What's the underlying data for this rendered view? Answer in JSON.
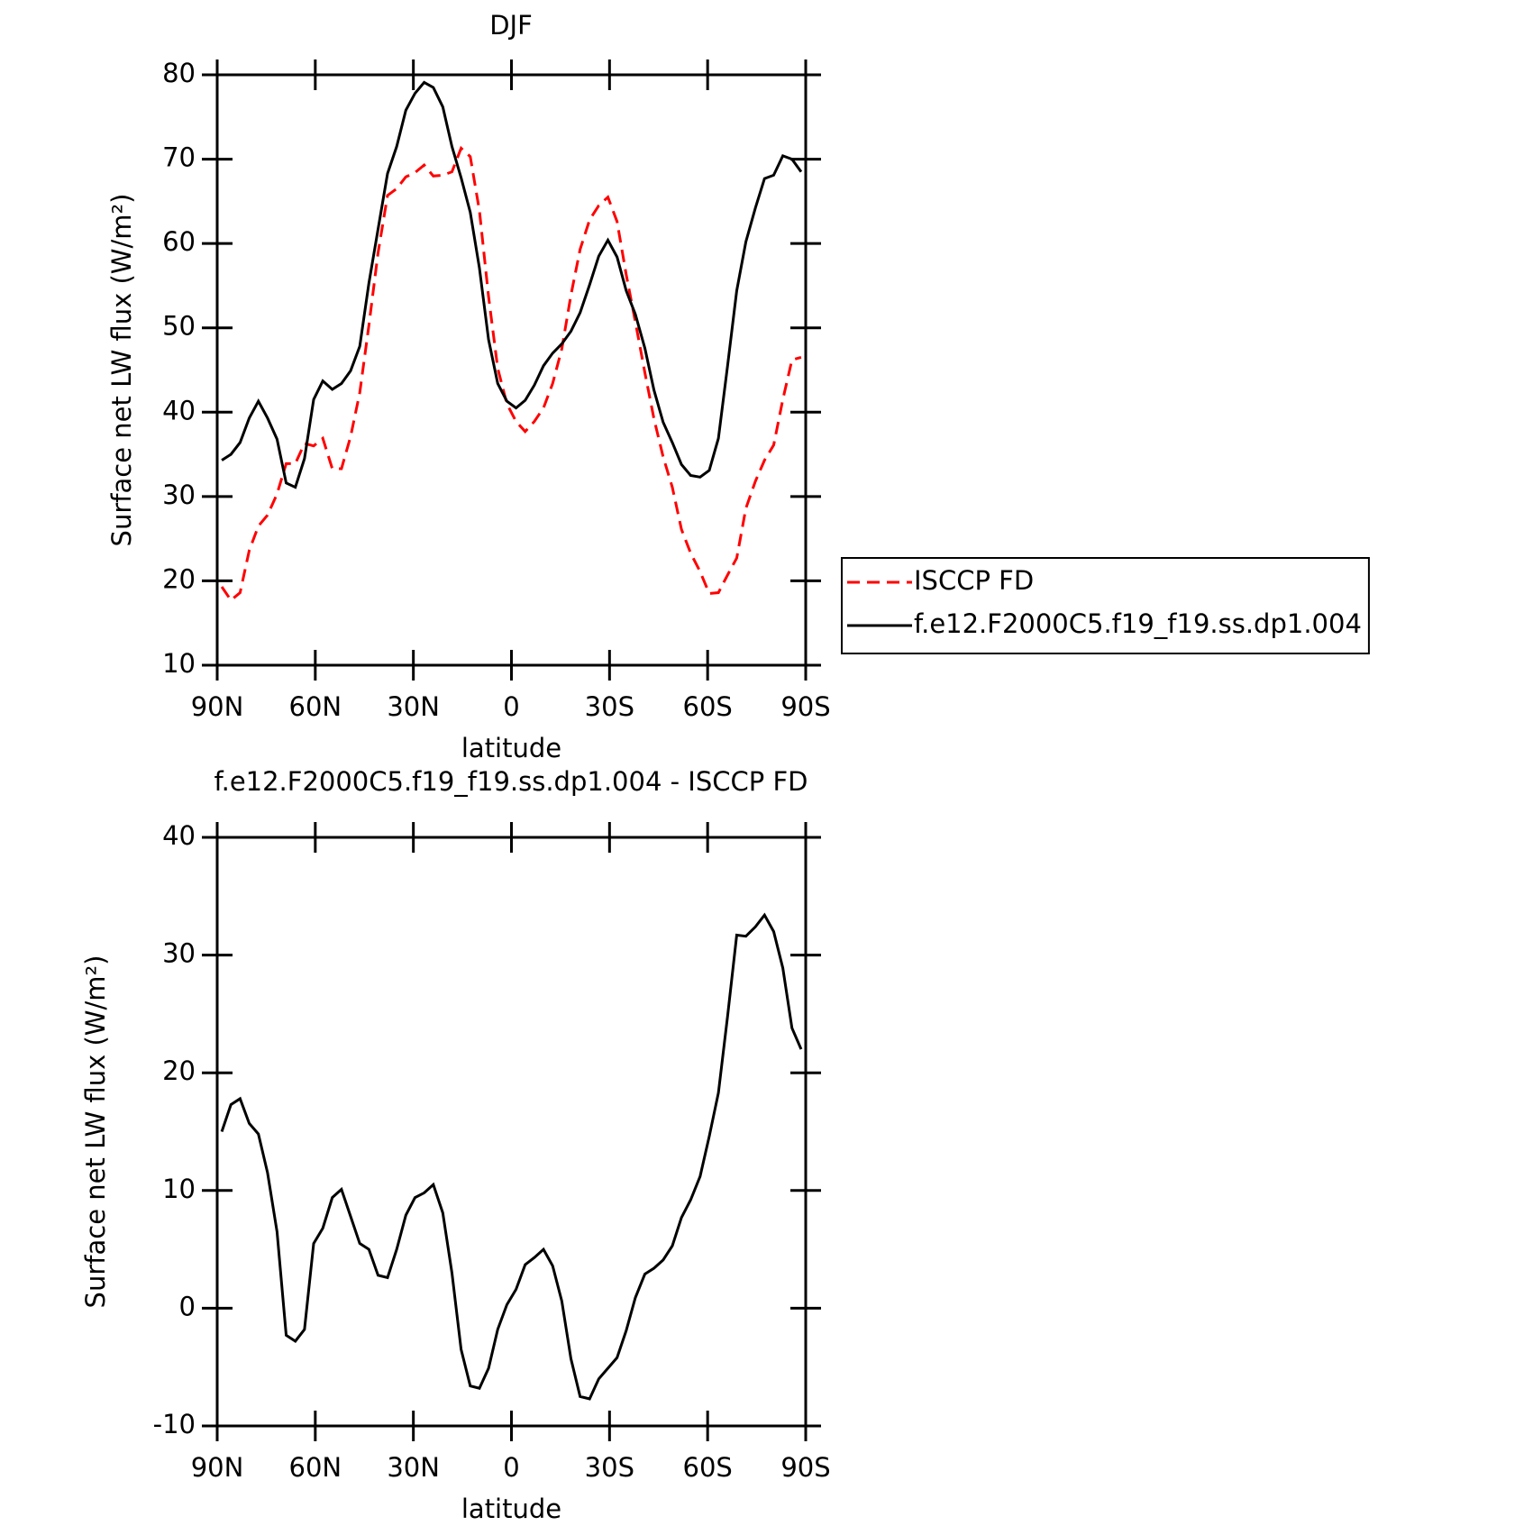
{
  "chart_data": [
    {
      "type": "line",
      "title": "DJF",
      "xlabel": "latitude",
      "ylabel": "Surface net LW flux (W/m²)",
      "x": [
        88.6,
        85.8,
        83.0,
        80.2,
        77.4,
        74.6,
        71.7,
        68.9,
        66.1,
        63.3,
        60.5,
        57.7,
        54.8,
        52.0,
        49.2,
        46.4,
        43.6,
        40.8,
        37.9,
        35.1,
        32.3,
        29.5,
        26.7,
        23.9,
        21.0,
        18.2,
        15.4,
        12.6,
        9.8,
        7.0,
        4.2,
        1.4,
        -1.4,
        -4.2,
        -7.0,
        -9.8,
        -12.6,
        -15.4,
        -18.2,
        -21.0,
        -23.9,
        -26.7,
        -29.5,
        -32.3,
        -35.1,
        -37.9,
        -40.8,
        -43.6,
        -46.4,
        -49.2,
        -52.0,
        -54.8,
        -57.7,
        -60.5,
        -63.3,
        -66.1,
        -68.9,
        -71.7,
        -74.6,
        -77.4,
        -80.2,
        -83.0,
        -85.8,
        -88.6
      ],
      "series": [
        {
          "name": "ISCCP FD",
          "color": "#ff0000",
          "dash": true,
          "values": [
            19.3,
            17.7,
            18.6,
            23.6,
            26.5,
            27.8,
            30.3,
            33.9,
            33.9,
            36.3,
            36.0,
            36.9,
            33.3,
            33.3,
            37.1,
            42.3,
            50.3,
            58.9,
            65.7,
            66.5,
            67.9,
            68.4,
            69.3,
            68.0,
            68.1,
            68.5,
            71.3,
            70.3,
            63.9,
            53.7,
            45.2,
            41.0,
            38.9,
            37.7,
            38.9,
            40.5,
            43.4,
            47.5,
            53.9,
            59.3,
            62.8,
            64.5,
            65.5,
            62.6,
            56.3,
            50.7,
            44.7,
            39.2,
            34.7,
            31.1,
            26.1,
            23.3,
            21.1,
            18.5,
            18.6,
            20.7,
            22.7,
            28.6,
            31.8,
            34.3,
            36.1,
            41.5,
            46.2,
            46.5
          ]
        },
        {
          "name": "f.e12.F2000C5.f19_f19.ss.dp1.004",
          "color": "#000000",
          "dash": false,
          "values": [
            34.3,
            35.0,
            36.4,
            39.3,
            41.3,
            39.3,
            36.8,
            31.6,
            31.1,
            34.5,
            41.5,
            43.7,
            42.7,
            43.4,
            44.9,
            47.8,
            55.3,
            61.7,
            68.3,
            71.5,
            75.8,
            77.8,
            79.1,
            78.5,
            76.2,
            71.5,
            67.8,
            63.7,
            57.1,
            48.6,
            43.4,
            41.3,
            40.5,
            41.4,
            43.2,
            45.5,
            47.0,
            48.1,
            49.6,
            51.8,
            55.1,
            58.5,
            60.4,
            58.4,
            54.4,
            51.6,
            47.6,
            42.6,
            38.8,
            36.4,
            33.8,
            32.5,
            32.3,
            33.1,
            36.9,
            45.5,
            54.4,
            60.2,
            64.2,
            67.7,
            68.1,
            70.4,
            70.0,
            68.5
          ]
        }
      ],
      "xlim": [
        90,
        -90
      ],
      "xticks": [
        {
          "value": 90,
          "label": "90N"
        },
        {
          "value": 60,
          "label": "60N"
        },
        {
          "value": 30,
          "label": "30N"
        },
        0,
        {
          "value": -30,
          "label": "30S"
        },
        {
          "value": -60,
          "label": "60S"
        },
        {
          "value": -90,
          "label": "90S"
        }
      ],
      "ylim": [
        10,
        80
      ],
      "yticks": [
        10,
        20,
        30,
        40,
        50,
        60,
        70,
        80
      ],
      "legend": "right"
    },
    {
      "type": "line",
      "title": "f.e12.F2000C5.f19_f19.ss.dp1.004 - ISCCP FD",
      "xlabel": "latitude",
      "ylabel": "Surface net LW flux (W/m²)",
      "x": [
        88.6,
        85.8,
        83.0,
        80.2,
        77.4,
        74.6,
        71.7,
        68.9,
        66.1,
        63.3,
        60.5,
        57.7,
        54.8,
        52.0,
        49.2,
        46.4,
        43.6,
        40.8,
        37.9,
        35.1,
        32.3,
        29.5,
        26.7,
        23.9,
        21.0,
        18.2,
        15.4,
        12.6,
        9.8,
        7.0,
        4.2,
        1.4,
        -1.4,
        -4.2,
        -7.0,
        -9.8,
        -12.6,
        -15.4,
        -18.2,
        -21.0,
        -23.9,
        -26.7,
        -29.5,
        -32.3,
        -35.1,
        -37.9,
        -40.8,
        -43.6,
        -46.4,
        -49.2,
        -52.0,
        -54.8,
        -57.7,
        -60.5,
        -63.3,
        -66.1,
        -68.9,
        -71.7,
        -74.6,
        -77.4,
        -80.2,
        -83.0,
        -85.8,
        -88.6
      ],
      "series": [
        {
          "color": "#000000",
          "dash": false,
          "values": [
            15.0,
            17.3,
            17.8,
            15.7,
            14.8,
            11.5,
            6.5,
            -2.3,
            -2.8,
            -1.8,
            5.5,
            6.8,
            9.4,
            10.1,
            7.8,
            5.5,
            5.0,
            2.8,
            2.6,
            5.0,
            7.9,
            9.4,
            9.8,
            10.5,
            8.1,
            3.0,
            -3.5,
            -6.6,
            -6.8,
            -5.1,
            -1.8,
            0.3,
            1.6,
            3.7,
            4.3,
            5.0,
            3.6,
            0.6,
            -4.3,
            -7.5,
            -7.7,
            -6.0,
            -5.1,
            -4.2,
            -1.9,
            0.9,
            2.9,
            3.4,
            4.1,
            5.3,
            7.7,
            9.2,
            11.2,
            14.6,
            18.3,
            24.8,
            31.7,
            31.6,
            32.4,
            33.4,
            32.0,
            28.9,
            23.8,
            22.0
          ]
        }
      ],
      "xlim": [
        90,
        -90
      ],
      "xticks": [
        {
          "value": 90,
          "label": "90N"
        },
        {
          "value": 60,
          "label": "60N"
        },
        {
          "value": 30,
          "label": "30N"
        },
        0,
        {
          "value": -30,
          "label": "30S"
        },
        {
          "value": -60,
          "label": "60S"
        },
        {
          "value": -90,
          "label": "90S"
        }
      ],
      "ylim": [
        -10,
        40
      ],
      "yticks": [
        -10,
        0,
        10,
        20,
        30,
        40
      ]
    }
  ]
}
